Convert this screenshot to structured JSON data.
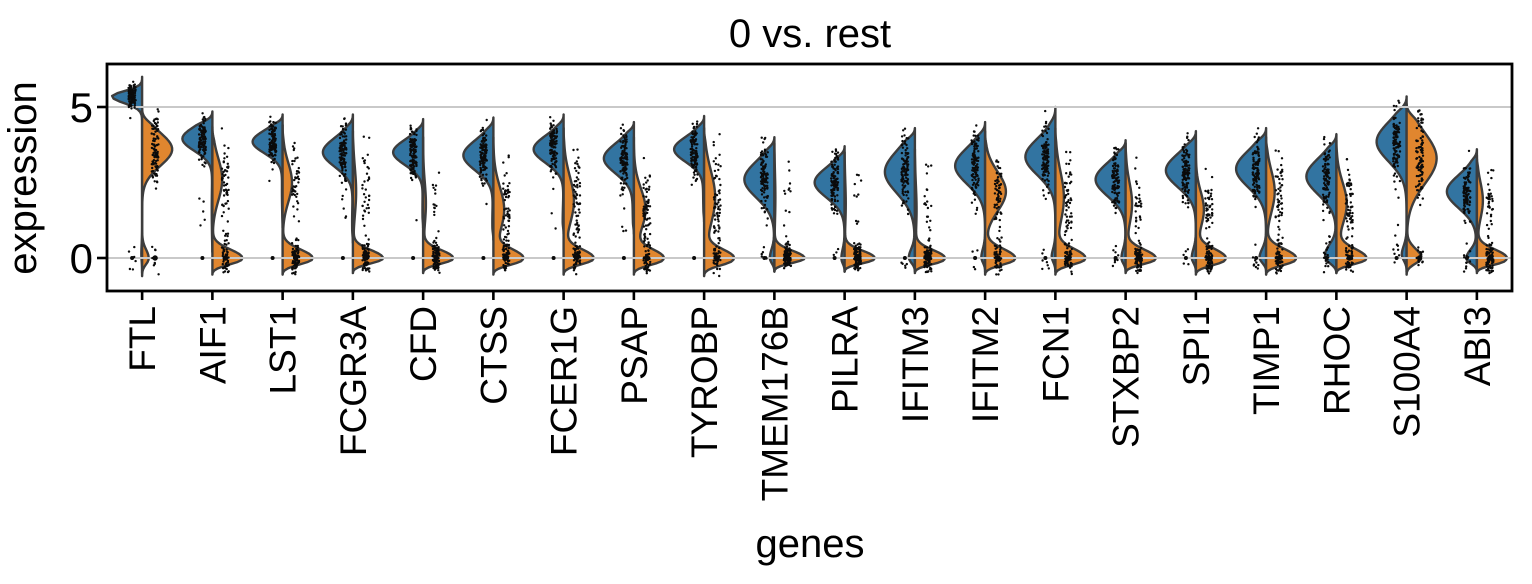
{
  "figure": {
    "background": "#ffffff"
  },
  "chart_data": {
    "type": "violin",
    "split": true,
    "title": "0 vs. rest",
    "xlabel": "genes",
    "ylabel": "expression",
    "groups": [
      "0",
      "rest"
    ],
    "legend": "none",
    "grid": "horizontal-at-ticks",
    "ylim": [
      -1.09,
      6.42
    ],
    "yticks": [
      {
        "value": 0,
        "label": "0"
      },
      {
        "value": 5,
        "label": "5"
      }
    ],
    "grid_values": [
      0,
      5
    ],
    "colors": {
      "group0_fill": "#3274a1",
      "rest_fill": "#e0862f",
      "edge": "#3d3d3d",
      "grid": "#c9c9c9",
      "frame": "#000000",
      "points": "#0b0b0b"
    },
    "categories": [
      "FTL",
      "AIF1",
      "LST1",
      "FCGR3A",
      "CFD",
      "CTSS",
      "FCER1G",
      "PSAP",
      "TYROBP",
      "TMEM176B",
      "PILRA",
      "IFITM3",
      "IFITM2",
      "FCN1",
      "STXBP2",
      "SPI1",
      "TIMP1",
      "RHOC",
      "S100A4",
      "ABI3"
    ],
    "points_style": {
      "per_side": 110,
      "radius": 1.2,
      "dx_group0": -10,
      "dx_rest": 13,
      "jitter": 3.5,
      "zero_dot_radius_g0": 2.0,
      "zero_dot_radius_rest": 2.7
    },
    "violins": [
      {
        "gene": "FTL",
        "g0": {
          "comps": [
            [
              5.35,
              0.22,
              0.96
            ],
            [
              0.1,
              0.35,
              0.04
            ]
          ],
          "range": [
            -0.5,
            6.0
          ]
        },
        "rest": {
          "comps": [
            [
              3.6,
              0.55,
              0.9
            ],
            [
              0.0,
              0.28,
              0.1
            ]
          ],
          "range": [
            -0.6,
            4.95
          ]
        }
      },
      {
        "gene": "AIF1",
        "g0": {
          "comps": [
            [
              3.95,
              0.4,
              0.96
            ],
            [
              1.6,
              0.8,
              0.04
            ]
          ],
          "range": [
            0.2,
            4.85
          ]
        },
        "rest": {
          "comps": [
            [
              2.6,
              0.7,
              0.45
            ],
            [
              0.0,
              0.28,
              0.55
            ]
          ],
          "range": [
            -0.55,
            4.35
          ]
        }
      },
      {
        "gene": "LST1",
        "g0": {
          "comps": [
            [
              3.85,
              0.38,
              0.96
            ],
            [
              2.2,
              0.7,
              0.04
            ]
          ],
          "range": [
            1.0,
            4.75
          ]
        },
        "rest": {
          "comps": [
            [
              2.5,
              0.65,
              0.42
            ],
            [
              0.0,
              0.28,
              0.58
            ]
          ],
          "range": [
            -0.55,
            4.4
          ]
        }
      },
      {
        "gene": "FCGR3A",
        "g0": {
          "comps": [
            [
              3.5,
              0.48,
              0.97
            ],
            [
              1.2,
              0.6,
              0.03
            ]
          ],
          "range": [
            0.5,
            4.75
          ]
        },
        "rest": {
          "comps": [
            [
              2.2,
              0.8,
              0.25
            ],
            [
              0.0,
              0.26,
              0.75
            ]
          ],
          "range": [
            -0.5,
            4.2
          ]
        }
      },
      {
        "gene": "CFD",
        "g0": {
          "comps": [
            [
              3.5,
              0.42,
              0.97
            ],
            [
              1.6,
              0.6,
              0.03
            ]
          ],
          "range": [
            1.0,
            4.6
          ]
        },
        "rest": {
          "comps": [
            [
              1.8,
              0.7,
              0.2
            ],
            [
              0.0,
              0.26,
              0.8
            ]
          ],
          "range": [
            -0.5,
            4.0
          ]
        }
      },
      {
        "gene": "CTSS",
        "g0": {
          "comps": [
            [
              3.4,
              0.5,
              0.96
            ],
            [
              1.2,
              0.6,
              0.04
            ]
          ],
          "range": [
            0.6,
            4.65
          ]
        },
        "rest": {
          "comps": [
            [
              1.6,
              0.75,
              0.5
            ],
            [
              0.0,
              0.28,
              0.5
            ]
          ],
          "range": [
            -0.55,
            4.0
          ]
        }
      },
      {
        "gene": "FCER1G",
        "g0": {
          "comps": [
            [
              3.6,
              0.45,
              0.96
            ],
            [
              1.2,
              0.6,
              0.04
            ]
          ],
          "range": [
            0.8,
            4.75
          ]
        },
        "rest": {
          "comps": [
            [
              1.9,
              0.8,
              0.5
            ],
            [
              0.0,
              0.28,
              0.5
            ]
          ],
          "range": [
            -0.55,
            4.3
          ]
        }
      },
      {
        "gene": "PSAP",
        "g0": {
          "comps": [
            [
              3.3,
              0.5,
              0.95
            ],
            [
              1.6,
              0.7,
              0.05
            ]
          ],
          "range": [
            0.8,
            4.5
          ]
        },
        "rest": {
          "comps": [
            [
              1.6,
              0.7,
              0.5
            ],
            [
              0.0,
              0.28,
              0.5
            ]
          ],
          "range": [
            -0.55,
            4.0
          ]
        }
      },
      {
        "gene": "TYROBP",
        "g0": {
          "comps": [
            [
              3.6,
              0.42,
              0.95
            ],
            [
              2.1,
              0.7,
              0.05
            ]
          ],
          "range": [
            1.2,
            4.7
          ]
        },
        "rest": {
          "comps": [
            [
              2.0,
              0.9,
              0.55
            ],
            [
              0.0,
              0.28,
              0.45
            ]
          ],
          "range": [
            -0.6,
            4.3
          ]
        }
      },
      {
        "gene": "TMEM176B",
        "g0": {
          "comps": [
            [
              2.6,
              0.6,
              0.93
            ],
            [
              0.0,
              0.3,
              0.07
            ]
          ],
          "range": [
            -0.45,
            4.0
          ]
        },
        "rest": {
          "comps": [
            [
              2.0,
              0.8,
              0.1
            ],
            [
              0.0,
              0.24,
              0.9
            ]
          ],
          "range": [
            -0.45,
            3.8
          ]
        }
      },
      {
        "gene": "PILRA",
        "g0": {
          "comps": [
            [
              2.5,
              0.5,
              0.94
            ],
            [
              0.0,
              0.3,
              0.06
            ]
          ],
          "range": [
            -0.45,
            3.7
          ]
        },
        "rest": {
          "comps": [
            [
              1.8,
              0.7,
              0.1
            ],
            [
              0.0,
              0.24,
              0.9
            ]
          ],
          "range": [
            -0.45,
            3.5
          ]
        }
      },
      {
        "gene": "IFITM3",
        "g0": {
          "comps": [
            [
              2.85,
              0.7,
              0.92
            ],
            [
              0.0,
              0.3,
              0.08
            ]
          ],
          "range": [
            -0.45,
            4.3
          ]
        },
        "rest": {
          "comps": [
            [
              1.6,
              0.8,
              0.15
            ],
            [
              0.0,
              0.26,
              0.85
            ]
          ],
          "range": [
            -0.5,
            3.6
          ]
        }
      },
      {
        "gene": "IFITM2",
        "g0": {
          "comps": [
            [
              3.05,
              0.6,
              0.94
            ],
            [
              0.0,
              0.3,
              0.06
            ]
          ],
          "range": [
            -0.45,
            4.5
          ]
        },
        "rest": {
          "comps": [
            [
              2.2,
              0.65,
              0.6
            ],
            [
              0.0,
              0.3,
              0.4
            ]
          ],
          "range": [
            -0.55,
            4.2
          ]
        }
      },
      {
        "gene": "FCN1",
        "g0": {
          "comps": [
            [
              3.35,
              0.6,
              0.94
            ],
            [
              0.0,
              0.3,
              0.06
            ]
          ],
          "range": [
            -0.45,
            5.0
          ]
        },
        "rest": {
          "comps": [
            [
              2.0,
              0.85,
              0.45
            ],
            [
              0.0,
              0.3,
              0.55
            ]
          ],
          "range": [
            -0.55,
            4.3
          ]
        }
      },
      {
        "gene": "STXBP2",
        "g0": {
          "comps": [
            [
              2.6,
              0.55,
              0.93
            ],
            [
              0.0,
              0.3,
              0.07
            ]
          ],
          "range": [
            -0.45,
            3.9
          ]
        },
        "rest": {
          "comps": [
            [
              1.8,
              0.7,
              0.35
            ],
            [
              0.0,
              0.28,
              0.65
            ]
          ],
          "range": [
            -0.5,
            3.8
          ]
        }
      },
      {
        "gene": "SPI1",
        "g0": {
          "comps": [
            [
              2.9,
              0.55,
              0.93
            ],
            [
              0.0,
              0.3,
              0.07
            ]
          ],
          "range": [
            -0.45,
            4.2
          ]
        },
        "rest": {
          "comps": [
            [
              1.6,
              0.6,
              0.35
            ],
            [
              0.0,
              0.3,
              0.65
            ]
          ],
          "range": [
            -0.55,
            3.9
          ]
        }
      },
      {
        "gene": "TIMP1",
        "g0": {
          "comps": [
            [
              2.95,
              0.6,
              0.9
            ],
            [
              0.0,
              0.3,
              0.1
            ]
          ],
          "range": [
            -0.45,
            4.3
          ]
        },
        "rest": {
          "comps": [
            [
              2.2,
              0.7,
              0.4
            ],
            [
              0.0,
              0.3,
              0.6
            ]
          ],
          "range": [
            -0.55,
            4.0
          ]
        }
      },
      {
        "gene": "RHOC",
        "g0": {
          "comps": [
            [
              2.7,
              0.6,
              0.82
            ],
            [
              0.1,
              0.35,
              0.18
            ]
          ],
          "range": [
            -0.5,
            4.1
          ]
        },
        "rest": {
          "comps": [
            [
              1.8,
              0.7,
              0.45
            ],
            [
              0.0,
              0.3,
              0.55
            ]
          ],
          "range": [
            -0.5,
            3.9
          ]
        }
      },
      {
        "gene": "S100A4",
        "g0": {
          "comps": [
            [
              3.85,
              0.65,
              0.93
            ],
            [
              0.1,
              0.3,
              0.07
            ]
          ],
          "range": [
            -0.45,
            5.35
          ]
        },
        "rest": {
          "comps": [
            [
              3.3,
              0.85,
              0.85
            ],
            [
              0.0,
              0.3,
              0.15
            ]
          ],
          "range": [
            -0.55,
            5.1
          ]
        }
      },
      {
        "gene": "ABI3",
        "g0": {
          "comps": [
            [
              2.2,
              0.55,
              0.85
            ],
            [
              0.0,
              0.28,
              0.15
            ]
          ],
          "range": [
            -0.45,
            3.6
          ]
        },
        "rest": {
          "comps": [
            [
              1.9,
              0.6,
              0.3
            ],
            [
              0.0,
              0.28,
              0.7
            ]
          ],
          "range": [
            -0.5,
            3.4
          ]
        }
      }
    ]
  }
}
